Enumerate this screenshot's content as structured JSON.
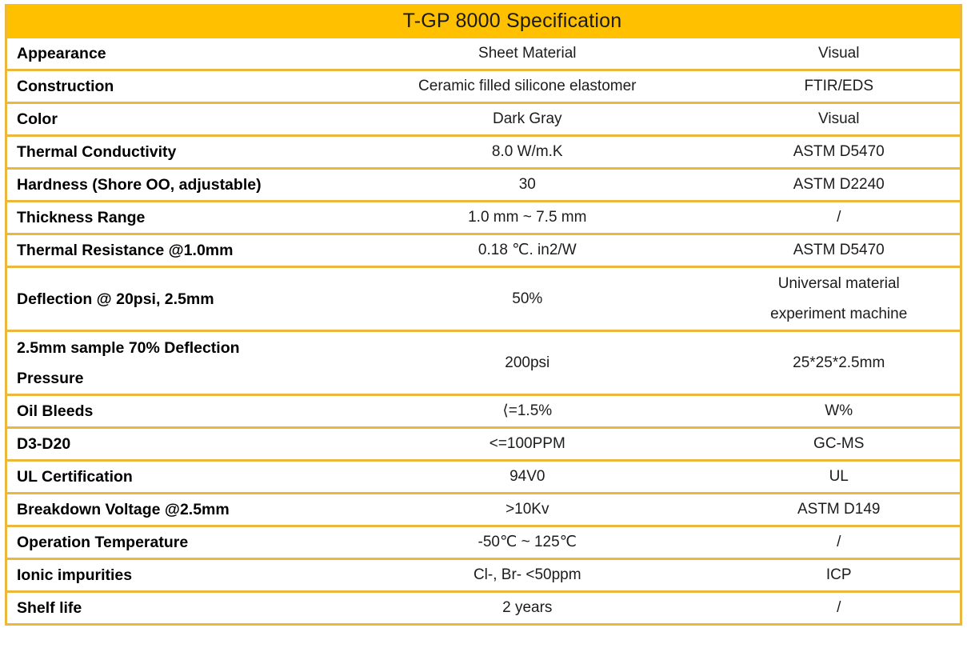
{
  "table": {
    "title": "T-GP 8000 Specification",
    "rows": [
      {
        "property": "Appearance",
        "value": "Sheet Material",
        "method": "Visual"
      },
      {
        "property": "Construction",
        "value": "Ceramic filled silicone elastomer",
        "method": "FTIR/EDS"
      },
      {
        "property": "Color",
        "value": "Dark Gray",
        "method": "Visual"
      },
      {
        "property": "Thermal Conductivity",
        "value": "8.0 W/m.K",
        "method": "ASTM D5470"
      },
      {
        "property": "Hardness (Shore OO, adjustable)",
        "value": "30",
        "method": "ASTM D2240"
      },
      {
        "property": "Thickness Range",
        "value": "1.0 mm ~ 7.5 mm",
        "method": "/"
      },
      {
        "property": "Thermal Resistance @1.0mm",
        "value": "0.18 ℃. in2/W",
        "method": "ASTM D5470"
      },
      {
        "property": "Deflection @ 20psi, 2.5mm",
        "value": "50%",
        "method": "Universal material\nexperiment machine"
      },
      {
        "property": "2.5mm sample 70% Deflection\nPressure",
        "value": "200psi",
        "method": "25*25*2.5mm"
      },
      {
        "property": "Oil Bleeds",
        "value": "⟨=1.5%",
        "method": "W%"
      },
      {
        "property": "D3-D20",
        "value": "<=100PPM",
        "method": "GC-MS"
      },
      {
        "property": "UL Certification",
        "value": "94V0",
        "method": "UL"
      },
      {
        "property": "Breakdown Voltage @2.5mm",
        "value": ">10Kv",
        "method": "ASTM D149"
      },
      {
        "property": "Operation Temperature",
        "value": "-50℃ ~ 125℃",
        "method": "/"
      },
      {
        "property": "Ionic impurities",
        "value": "Cl-, Br- <50ppm",
        "method": "ICP"
      },
      {
        "property": "Shelf life",
        "value": "2 years",
        "method": "/"
      }
    ]
  },
  "colors": {
    "header_bg": "#FFC000",
    "border": "#EBB73D",
    "title_text": "#1A1A1A",
    "label_text": "#000000",
    "value_text": "#1C1C1C"
  }
}
